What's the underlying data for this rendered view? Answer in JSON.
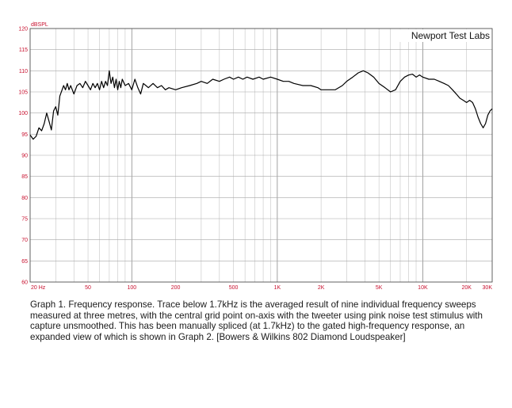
{
  "chart_data": {
    "type": "line",
    "title": "",
    "ylabel": "dBSPL",
    "xlabel": "",
    "x_scale": "log",
    "xlim": [
      20,
      30000
    ],
    "ylim": [
      60,
      120
    ],
    "grid": true,
    "watermark": "Newport Test Labs",
    "y_ticks": [
      60,
      65,
      70,
      75,
      80,
      85,
      90,
      95,
      100,
      105,
      110,
      115,
      120
    ],
    "x_ticks": [
      {
        "value": 20,
        "label": "20 Hz"
      },
      {
        "value": 50,
        "label": "50"
      },
      {
        "value": 100,
        "label": "100"
      },
      {
        "value": 200,
        "label": "200"
      },
      {
        "value": 500,
        "label": "500"
      },
      {
        "value": 1000,
        "label": "1K"
      },
      {
        "value": 2000,
        "label": "2K"
      },
      {
        "value": 5000,
        "label": "5K"
      },
      {
        "value": 10000,
        "label": "10K"
      },
      {
        "value": 20000,
        "label": "20K"
      },
      {
        "value": 30000,
        "label": "30K"
      }
    ],
    "series": [
      {
        "color": "#000000",
        "points": [
          [
            20,
            94.8
          ],
          [
            21,
            93.8
          ],
          [
            22,
            94.5
          ],
          [
            23,
            96.5
          ],
          [
            24,
            95.8
          ],
          [
            25,
            97.5
          ],
          [
            26,
            100.0
          ],
          [
            27,
            98.0
          ],
          [
            28,
            96.0
          ],
          [
            29,
            100.5
          ],
          [
            30,
            101.5
          ],
          [
            31,
            99.5
          ],
          [
            32,
            104.0
          ],
          [
            34,
            106.5
          ],
          [
            35,
            105.5
          ],
          [
            36,
            107.0
          ],
          [
            37,
            105.5
          ],
          [
            38,
            106.5
          ],
          [
            40,
            104.5
          ],
          [
            42,
            106.5
          ],
          [
            44,
            107.0
          ],
          [
            46,
            106.0
          ],
          [
            48,
            107.5
          ],
          [
            50,
            106.5
          ],
          [
            52,
            105.5
          ],
          [
            54,
            107.0
          ],
          [
            56,
            106.0
          ],
          [
            58,
            107.0
          ],
          [
            60,
            105.5
          ],
          [
            62,
            107.5
          ],
          [
            64,
            106.0
          ],
          [
            66,
            107.5
          ],
          [
            68,
            106.5
          ],
          [
            70,
            110.0
          ],
          [
            72,
            107.0
          ],
          [
            74,
            108.5
          ],
          [
            76,
            106.0
          ],
          [
            78,
            108.0
          ],
          [
            80,
            105.5
          ],
          [
            82,
            107.5
          ],
          [
            84,
            106.0
          ],
          [
            86,
            108.0
          ],
          [
            90,
            106.5
          ],
          [
            95,
            107.0
          ],
          [
            100,
            105.5
          ],
          [
            105,
            108.0
          ],
          [
            110,
            106.0
          ],
          [
            115,
            104.5
          ],
          [
            120,
            107.0
          ],
          [
            125,
            106.5
          ],
          [
            130,
            106.0
          ],
          [
            140,
            107.0
          ],
          [
            150,
            106.0
          ],
          [
            160,
            106.5
          ],
          [
            170,
            105.5
          ],
          [
            180,
            106.0
          ],
          [
            200,
            105.5
          ],
          [
            220,
            106.0
          ],
          [
            250,
            106.5
          ],
          [
            280,
            107.0
          ],
          [
            300,
            107.5
          ],
          [
            330,
            107.0
          ],
          [
            360,
            108.0
          ],
          [
            400,
            107.5
          ],
          [
            430,
            108.0
          ],
          [
            470,
            108.5
          ],
          [
            500,
            108.0
          ],
          [
            540,
            108.5
          ],
          [
            580,
            108.0
          ],
          [
            620,
            108.5
          ],
          [
            680,
            108.0
          ],
          [
            750,
            108.5
          ],
          [
            800,
            108.0
          ],
          [
            900,
            108.5
          ],
          [
            1000,
            108.0
          ],
          [
            1100,
            107.5
          ],
          [
            1200,
            107.5
          ],
          [
            1300,
            107.0
          ],
          [
            1500,
            106.5
          ],
          [
            1700,
            106.5
          ],
          [
            1900,
            106.0
          ],
          [
            2000,
            105.5
          ],
          [
            2200,
            105.5
          ],
          [
            2500,
            105.5
          ],
          [
            2800,
            106.5
          ],
          [
            3000,
            107.5
          ],
          [
            3300,
            108.5
          ],
          [
            3600,
            109.5
          ],
          [
            3900,
            110.0
          ],
          [
            4200,
            109.5
          ],
          [
            4600,
            108.5
          ],
          [
            5000,
            107.0
          ],
          [
            5500,
            106.0
          ],
          [
            6000,
            105.0
          ],
          [
            6500,
            105.5
          ],
          [
            7000,
            107.5
          ],
          [
            7500,
            108.5
          ],
          [
            8000,
            109.0
          ],
          [
            8500,
            109.2
          ],
          [
            9000,
            108.5
          ],
          [
            9500,
            109.0
          ],
          [
            10000,
            108.5
          ],
          [
            11000,
            108.0
          ],
          [
            12000,
            108.0
          ],
          [
            13000,
            107.5
          ],
          [
            14000,
            107.0
          ],
          [
            15000,
            106.5
          ],
          [
            16000,
            105.5
          ],
          [
            17000,
            104.5
          ],
          [
            18000,
            103.5
          ],
          [
            19000,
            103.0
          ],
          [
            20000,
            102.5
          ],
          [
            21000,
            103.0
          ],
          [
            22000,
            102.5
          ],
          [
            23000,
            101.0
          ],
          [
            24000,
            99.0
          ],
          [
            25000,
            97.5
          ],
          [
            26000,
            96.5
          ],
          [
            27000,
            97.5
          ],
          [
            28000,
            99.5
          ],
          [
            29000,
            100.5
          ],
          [
            30000,
            101.0
          ]
        ]
      }
    ]
  },
  "caption": "Graph 1. Frequency response. Trace below 1.7kHz is the averaged result of nine individual frequency sweeps measured at three metres, with the central grid point on-axis with the tweeter using pink noise test stimulus with capture unsmoothed. This has been manually spliced (at 1.7kHz) to the gated high-frequency response, an expanded view of which is shown in Graph 2. [Bowers & Wilkins 802 Diamond Loudspeaker]"
}
